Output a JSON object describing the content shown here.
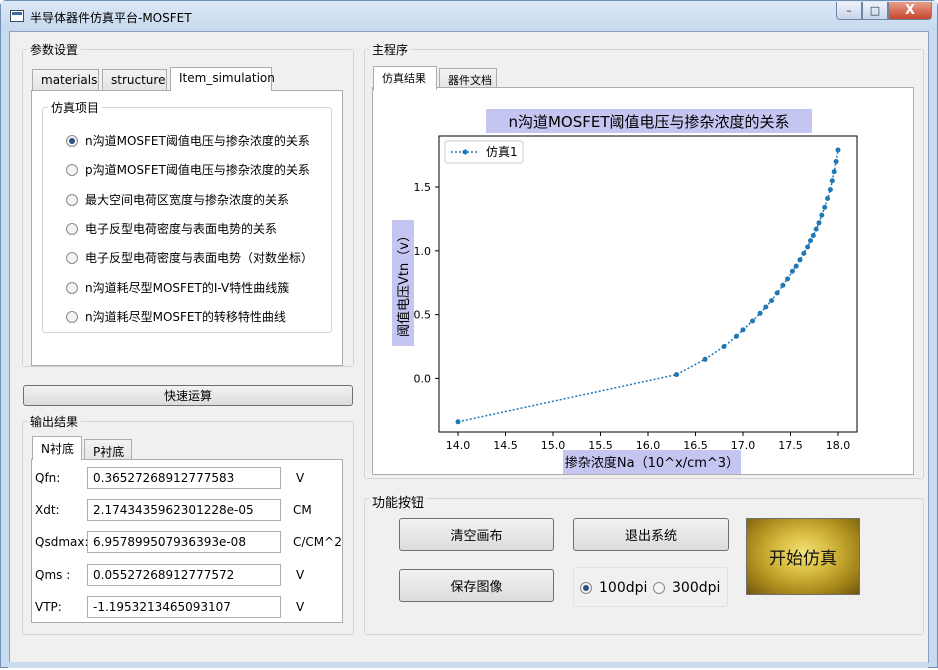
{
  "window": {
    "title": "半导体器件仿真平台-MOSFET",
    "minimize": "–",
    "maximize": "□",
    "close": "X"
  },
  "params": {
    "group_title": "参数设置",
    "tabs": [
      "materials",
      "structure",
      "Item_simulation"
    ],
    "active_tab": "Item_simulation",
    "sim_group_title": "仿真项目",
    "items": [
      {
        "label": "n沟道MOSFET阈值电压与掺杂浓度的关系",
        "checked": true
      },
      {
        "label": "p沟道MOSFET阈值电压与掺杂浓度的关系",
        "checked": false
      },
      {
        "label": "最大空间电荷区宽度与掺杂浓度的关系",
        "checked": false
      },
      {
        "label": "电子反型电荷密度与表面电势的关系",
        "checked": false
      },
      {
        "label": "电子反型电荷密度与表面电势（对数坐标）",
        "checked": false
      },
      {
        "label": "n沟道耗尽型MOSFET的I-V特性曲线簇",
        "checked": false
      },
      {
        "label": "n沟道耗尽型MOSFET的转移特性曲线",
        "checked": false
      }
    ]
  },
  "quick_button": "快速运算",
  "output": {
    "group_title": "输出结果",
    "tabs": [
      "N衬底",
      "P衬底"
    ],
    "active_tab": "N衬底",
    "rows": [
      {
        "label": "Qfn:",
        "value": "0.36527268912777583",
        "unit": "V"
      },
      {
        "label": "Xdt:",
        "value": "2.1743435962301228e-05",
        "unit": "CM"
      },
      {
        "label": "Qsdmax:",
        "value": "6.957899507936393e-08",
        "unit": "C/CM^2"
      },
      {
        "label": "Qms :",
        "value": "0.05527268912777572",
        "unit": "V"
      },
      {
        "label": "VTP:",
        "value": "-1.1953213465093107",
        "unit": "V"
      }
    ]
  },
  "main": {
    "group_title": "主程序",
    "tabs": [
      "仿真结果",
      "器件文档"
    ],
    "active_tab": "仿真结果"
  },
  "functions": {
    "group_title": "功能按钮",
    "clear_label": "清空画布",
    "exit_label": "退出系统",
    "save_label": "保存图像",
    "dpi_options": [
      {
        "label": "100dpi",
        "checked": true
      },
      {
        "label": "300dpi",
        "checked": false
      }
    ],
    "start_label": "开始仿真"
  },
  "chart_data": {
    "type": "line",
    "title": "n沟道MOSFET阈值电压与掺杂浓度的关系",
    "xlabel": "掺杂浓度Na（10^x/cm^3）",
    "ylabel": "阈值电压Vtn（v）",
    "xlim": [
      13.8,
      18.2
    ],
    "ylim": [
      -0.42,
      1.9
    ],
    "xticks": [
      "14.0",
      "14.5",
      "15.0",
      "15.5",
      "16.0",
      "16.5",
      "17.0",
      "17.5",
      "18.0"
    ],
    "yticks": [
      "0.0",
      "0.5",
      "1.0",
      "1.5"
    ],
    "grid": false,
    "legend": "top-left",
    "line_color": "#1f77b4",
    "title_bg": "#c5c5f2",
    "series": [
      {
        "name": "仿真1",
        "x": [
          14.0,
          16.3,
          16.6,
          16.8,
          16.93,
          17.0,
          17.1,
          17.18,
          17.24,
          17.3,
          17.36,
          17.42,
          17.47,
          17.52,
          17.56,
          17.6,
          17.64,
          17.68,
          17.71,
          17.74,
          17.77,
          17.8,
          17.83,
          17.86,
          17.89,
          17.92,
          17.94,
          17.96,
          17.98,
          18.0
        ],
        "y": [
          -0.34,
          0.03,
          0.15,
          0.25,
          0.33,
          0.38,
          0.45,
          0.51,
          0.56,
          0.61,
          0.67,
          0.73,
          0.78,
          0.84,
          0.88,
          0.93,
          0.98,
          1.03,
          1.08,
          1.12,
          1.17,
          1.22,
          1.28,
          1.34,
          1.41,
          1.48,
          1.55,
          1.62,
          1.7,
          1.79
        ]
      }
    ]
  }
}
